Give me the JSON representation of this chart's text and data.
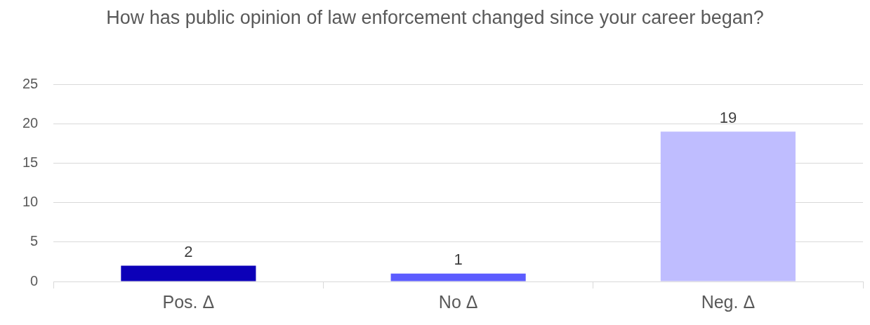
{
  "chart_data": {
    "type": "bar",
    "title": "How has public opinion of law enforcement changed since your career began?",
    "categories": [
      "Pos. Δ",
      "No Δ",
      "Neg. Δ"
    ],
    "values": [
      2,
      1,
      19
    ],
    "colors": [
      "#0c00b8",
      "#5c5cff",
      "#bfbdff"
    ],
    "ylim": [
      0,
      25
    ],
    "yticks": [
      0,
      5,
      10,
      15,
      20,
      25
    ],
    "grid": "y",
    "data_labels": true,
    "legend": false
  }
}
